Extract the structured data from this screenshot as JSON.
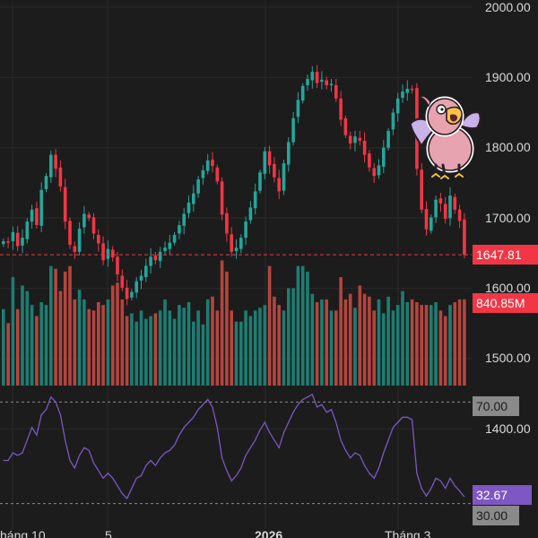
{
  "price_axis": {
    "labels": [
      "2000.00",
      "1900.00",
      "1800.00",
      "1700.00",
      "1600.00",
      "1500.00",
      "1400.00"
    ]
  },
  "time_axis": {
    "labels": [
      "háng 10",
      "5",
      "2026",
      "Tháng 3"
    ]
  },
  "price_tag": "1647.81",
  "volume_tag": "840.85M",
  "rsi": {
    "upper_tag": "70.00",
    "value_tag": "32.67",
    "lower_tag": "30.00"
  },
  "colors": {
    "background": "#1c1c1c",
    "up": "#26a69a",
    "down": "#f23645",
    "volume_up": "#1e7d72",
    "volume_down": "#b5453e",
    "rsi_line": "#7e57c2",
    "grid": "#2a2a2a",
    "axis_text": "#d9d9d9"
  },
  "mascot": {
    "icon": "screaming-bird-sticker"
  },
  "chart_data": {
    "type": "candlestick",
    "y_range_price": [
      1380,
      2000
    ],
    "last_price": 1647.81,
    "last_volume_label": "840.85M",
    "closes": [
      1667,
      1665,
      1680,
      1660,
      1672,
      1695,
      1712,
      1690,
      1740,
      1760,
      1790,
      1770,
      1745,
      1695,
      1662,
      1652,
      1685,
      1706,
      1700,
      1678,
      1664,
      1640,
      1656,
      1644,
      1620,
      1601,
      1585,
      1595,
      1610,
      1618,
      1632,
      1645,
      1640,
      1652,
      1658,
      1665,
      1676,
      1690,
      1706,
      1722,
      1735,
      1755,
      1768,
      1782,
      1774,
      1752,
      1705,
      1678,
      1652,
      1658,
      1672,
      1695,
      1715,
      1738,
      1765,
      1795,
      1775,
      1758,
      1738,
      1778,
      1808,
      1842,
      1868,
      1888,
      1898,
      1908,
      1892,
      1897,
      1889,
      1891,
      1870,
      1840,
      1818,
      1806,
      1816,
      1810,
      1790,
      1772,
      1760,
      1775,
      1800,
      1824,
      1850,
      1870,
      1880,
      1884,
      1883,
      1770,
      1712,
      1684,
      1701,
      1726,
      1721,
      1699,
      1732,
      1712,
      1696,
      1647.81
    ],
    "volumes_rel": [
      0.55,
      0.45,
      0.78,
      0.55,
      0.72,
      0.68,
      0.58,
      0.5,
      0.6,
      0.58,
      0.86,
      0.84,
      0.68,
      0.82,
      0.86,
      0.62,
      0.69,
      0.62,
      0.55,
      0.54,
      0.6,
      0.58,
      0.62,
      0.72,
      0.74,
      0.62,
      0.5,
      0.52,
      0.46,
      0.54,
      0.48,
      0.5,
      0.52,
      0.54,
      0.62,
      0.54,
      0.48,
      0.58,
      0.56,
      0.6,
      0.46,
      0.54,
      0.44,
      0.62,
      0.64,
      0.54,
      0.9,
      0.82,
      0.54,
      0.46,
      0.46,
      0.54,
      0.5,
      0.54,
      0.56,
      0.58,
      0.86,
      0.64,
      0.58,
      0.54,
      0.7,
      0.7,
      0.86,
      0.86,
      0.82,
      0.66,
      0.6,
      0.62,
      0.62,
      0.54,
      0.54,
      0.78,
      0.62,
      0.66,
      0.56,
      0.72,
      0.66,
      0.64,
      0.54,
      0.62,
      0.52,
      0.64,
      0.54,
      0.58,
      0.68,
      0.6,
      0.62,
      0.6,
      0.58,
      0.58,
      0.58,
      0.6,
      0.54,
      0.5,
      0.58,
      0.6,
      0.62,
      0.62
    ],
    "rsi_range": [
      20,
      80
    ],
    "rsi_levels": [
      70,
      30
    ],
    "rsi_last": 32.67,
    "rsi": [
      47,
      47,
      50,
      49,
      50,
      55,
      60,
      57,
      65,
      67,
      72,
      70,
      65,
      55,
      47,
      44,
      49,
      52,
      51,
      46,
      43,
      40,
      42,
      40,
      37,
      34,
      32,
      36,
      40,
      41,
      45,
      47,
      45,
      48,
      50,
      51,
      53,
      57,
      60,
      62,
      64,
      67,
      69,
      71,
      68,
      60,
      48,
      43,
      39,
      41,
      44,
      49,
      52,
      55,
      59,
      62,
      58,
      55,
      52,
      58,
      62,
      66,
      69,
      71,
      72,
      73,
      68,
      69,
      66,
      67,
      62,
      55,
      51,
      48,
      50,
      49,
      45,
      42,
      40,
      44,
      50,
      55,
      60,
      62,
      64,
      64,
      63,
      42,
      36,
      33,
      36,
      40,
      39,
      36,
      40,
      37,
      35,
      32.67
    ]
  }
}
